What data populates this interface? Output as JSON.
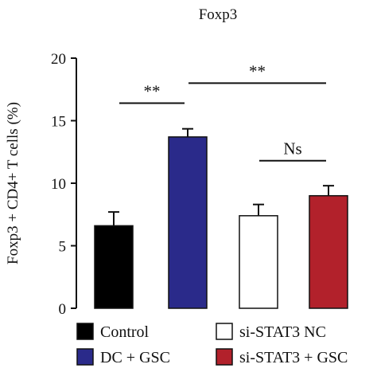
{
  "chart_data": {
    "type": "bar",
    "title": "Foxp3",
    "xlabel": "",
    "ylabel": "Foxp3 + CD4+ T cells (%)",
    "ylim": [
      0,
      20
    ],
    "yticks": [
      0,
      5,
      10,
      15,
      20
    ],
    "grid": false,
    "categories": [
      "Control",
      "DC + GSC",
      "si-STAT3 NC",
      "si-STAT3 + GSC"
    ],
    "values": [
      6.6,
      13.7,
      7.4,
      9.0
    ],
    "errors": [
      1.1,
      0.65,
      0.9,
      0.8
    ],
    "colors": [
      "#000000",
      "#2a2a8a",
      "#ffffff",
      "#b2212b"
    ],
    "legend": {
      "position": "bottom",
      "entries": [
        "Control",
        "DC + GSC",
        "si-STAT3 NC",
        "si-STAT3 + GSC"
      ]
    },
    "significance": [
      {
        "from": 0,
        "to": 1,
        "label": "**",
        "y": 16.4
      },
      {
        "from": 1,
        "to": 3,
        "label": "**",
        "y": 18.0
      },
      {
        "from": 2,
        "to": 3,
        "label": "Ns",
        "y": 11.8
      }
    ]
  }
}
